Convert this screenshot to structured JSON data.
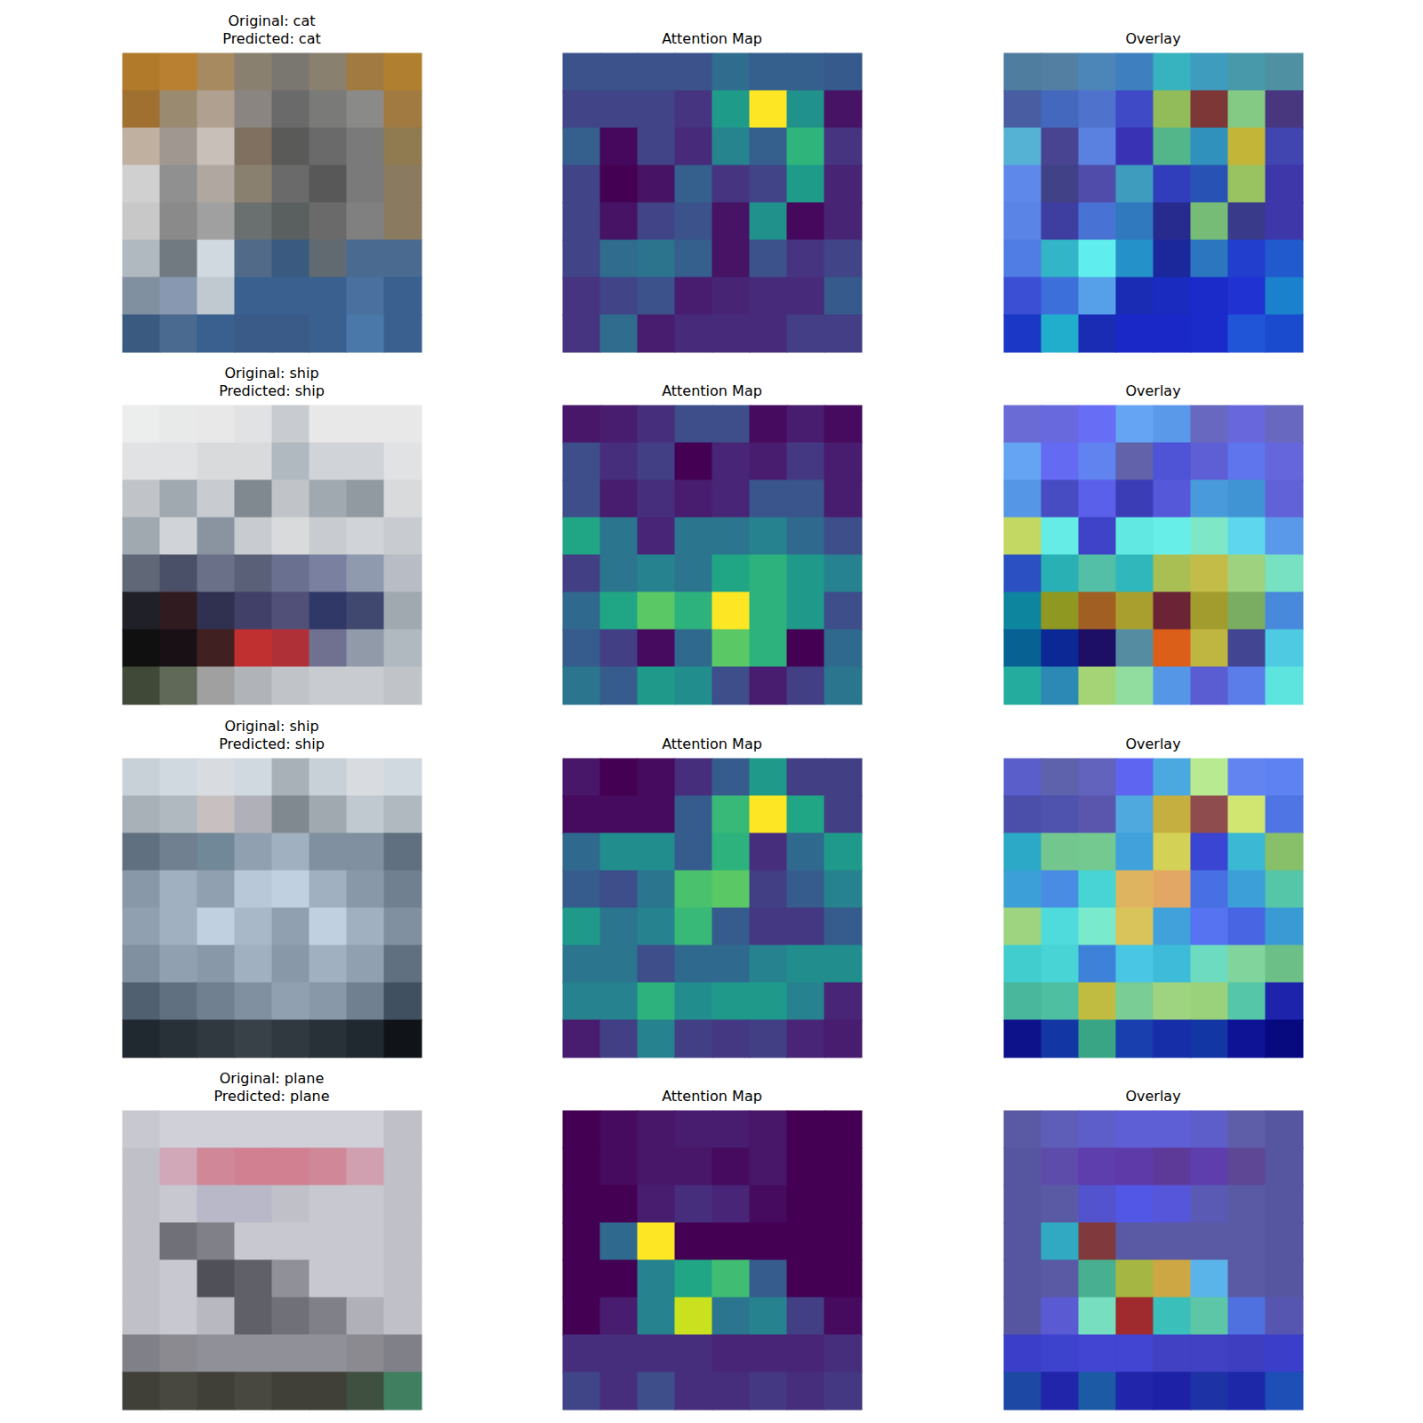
{
  "chart_data": {
    "type": "heatmap_grid",
    "tick_labels": false,
    "rows": [
      {
        "title": [
          "Original: cat",
          "Predicted: cat"
        ],
        "image": [
          [
            "#b07a2a",
            "#b88030",
            "#a88a60",
            "#8a8070",
            "#7a7670",
            "#8a8070",
            "#a07a40",
            "#b08030"
          ],
          [
            "#a07030",
            "#9a8a70",
            "#b0a090",
            "#8a8580",
            "#6a6a6a",
            "#7a7a78",
            "#8a8a88",
            "#a07a40"
          ],
          [
            "#c0b0a0",
            "#a09890",
            "#c8c0b8",
            "#807060",
            "#5a5a58",
            "#6a6a6a",
            "#7a7a7a",
            "#907a50"
          ],
          [
            "#d0d0d0",
            "#909090",
            "#b0a8a0",
            "#8a8070",
            "#6a6a6a",
            "#585858",
            "#7a7a7a",
            "#8a7a60"
          ],
          [
            "#c8c8c8",
            "#8a8a8a",
            "#a0a0a0",
            "#6a7070",
            "#5a6060",
            "#6a6a6a",
            "#808080",
            "#8a7a60"
          ],
          [
            "#b0b8c0",
            "#707a80",
            "#d0d8e0",
            "#506a88",
            "#3a5a80",
            "#606a70",
            "#4a6a90",
            "#4a6a90"
          ],
          [
            "#8090a0",
            "#8898b0",
            "#c0c8d0",
            "#3a6090",
            "#3a6090",
            "#3a6090",
            "#4a70a0",
            "#3a6090"
          ],
          [
            "#3a5a80",
            "#4a6a90",
            "#3a6090",
            "#3a5a88",
            "#3a5a88",
            "#3a6090",
            "#4a78a8",
            "#3a6090"
          ]
        ],
        "attention_title": "Attention Map",
        "attention": [
          [
            0.25,
            0.25,
            0.25,
            0.25,
            0.35,
            0.3,
            0.3,
            0.28
          ],
          [
            0.2,
            0.2,
            0.2,
            0.15,
            0.55,
            1.0,
            0.5,
            0.05
          ],
          [
            0.3,
            0.02,
            0.2,
            0.12,
            0.45,
            0.3,
            0.65,
            0.15
          ],
          [
            0.2,
            0.0,
            0.05,
            0.3,
            0.15,
            0.2,
            0.55,
            0.1
          ],
          [
            0.2,
            0.05,
            0.2,
            0.25,
            0.05,
            0.5,
            0.02,
            0.1
          ],
          [
            0.2,
            0.35,
            0.38,
            0.3,
            0.05,
            0.25,
            0.15,
            0.2
          ],
          [
            0.15,
            0.2,
            0.25,
            0.08,
            0.1,
            0.12,
            0.12,
            0.28
          ],
          [
            0.15,
            0.35,
            0.08,
            0.12,
            0.12,
            0.12,
            0.18,
            0.18
          ]
        ],
        "overlay_title": "Overlay"
      },
      {
        "title": [
          "Original: ship",
          "Predicted: ship"
        ],
        "image": [
          [
            "#eceeee",
            "#e8eaea",
            "#e8e8e8",
            "#e0e2e4",
            "#c8ccd0",
            "#e8e8e8",
            "#e8e8e8",
            "#e8e8e8"
          ],
          [
            "#e0e2e4",
            "#e0e2e4",
            "#d8dadc",
            "#d8dadc",
            "#b0b8c0",
            "#d0d4d8",
            "#d0d4d8",
            "#e0e2e4"
          ],
          [
            "#c0c4c8",
            "#a0a8b0",
            "#c8ccd0",
            "#808890",
            "#c0c4c8",
            "#a0a8b0",
            "#909aa0",
            "#d8dadc"
          ],
          [
            "#a0a8b0",
            "#d0d4d8",
            "#8a94a0",
            "#c8ccd0",
            "#d8dadc",
            "#c8ccd0",
            "#d0d4d8",
            "#c8ccd0"
          ],
          [
            "#606878",
            "#4a5068",
            "#6a7088",
            "#5a6078",
            "#6a7090",
            "#7a80a0",
            "#909aaf",
            "#b8bcc4"
          ],
          [
            "#202028",
            "#301c20",
            "#303050",
            "#404068",
            "#505078",
            "#303868",
            "#404870",
            "#a0a8b0"
          ],
          [
            "#101010",
            "#181014",
            "#402020",
            "#c03030",
            "#b03038",
            "#707090",
            "#909aa8",
            "#b0b8c0"
          ],
          [
            "#404838",
            "#606858",
            "#a0a0a0",
            "#b0b4b8",
            "#c0c4c8",
            "#c8ccd0",
            "#c8ccd0",
            "#c0c4c8"
          ]
        ],
        "attention_title": "Attention Map",
        "attention": [
          [
            0.08,
            0.1,
            0.15,
            0.25,
            0.25,
            0.05,
            0.1,
            0.05
          ],
          [
            0.25,
            0.15,
            0.2,
            0.02,
            0.12,
            0.1,
            0.18,
            0.1
          ],
          [
            0.25,
            0.1,
            0.15,
            0.1,
            0.12,
            0.28,
            0.28,
            0.1
          ],
          [
            0.6,
            0.4,
            0.12,
            0.4,
            0.4,
            0.45,
            0.35,
            0.25
          ],
          [
            0.2,
            0.4,
            0.45,
            0.4,
            0.6,
            0.65,
            0.55,
            0.45
          ],
          [
            0.35,
            0.6,
            0.75,
            0.65,
            1.0,
            0.65,
            0.55,
            0.25
          ],
          [
            0.3,
            0.2,
            0.05,
            0.35,
            0.75,
            0.65,
            0.02,
            0.35
          ],
          [
            0.4,
            0.3,
            0.55,
            0.5,
            0.25,
            0.1,
            0.2,
            0.4
          ]
        ],
        "overlay_title": "Overlay"
      },
      {
        "title": [
          "Original: ship",
          "Predicted: ship"
        ],
        "image": [
          [
            "#c8d0d8",
            "#d0d8e0",
            "#d8dce0",
            "#d0d8e0",
            "#a8b0b8",
            "#c8d0d8",
            "#d8dce0",
            "#d0d8e0"
          ],
          [
            "#a8b0b8",
            "#b0b8c0",
            "#c8c0c0",
            "#b0b0b8",
            "#808890",
            "#a0a8b0",
            "#c0c8d0",
            "#b0b8c0"
          ],
          [
            "#607080",
            "#708090",
            "#708898",
            "#90a0b0",
            "#a0b0c0",
            "#8090a0",
            "#8090a0",
            "#607080"
          ],
          [
            "#8898a8",
            "#a0b0c0",
            "#90a0b0",
            "#b8c8d8",
            "#c0d0e0",
            "#a0b0c0",
            "#8898a8",
            "#708090"
          ],
          [
            "#90a0b0",
            "#a0b0c0",
            "#c0d0e0",
            "#a8b8c8",
            "#90a0b0",
            "#c0d0e0",
            "#a0b0c0",
            "#8090a0"
          ],
          [
            "#8090a0",
            "#90a0b0",
            "#8898a8",
            "#a0b0c0",
            "#8898a8",
            "#a0b0c0",
            "#90a0b0",
            "#607080"
          ],
          [
            "#506070",
            "#607080",
            "#708090",
            "#8090a0",
            "#90a0b0",
            "#8898a8",
            "#708090",
            "#405060"
          ],
          [
            "#202830",
            "#283038",
            "#303840",
            "#384048",
            "#303840",
            "#283038",
            "#202830",
            "#101418"
          ]
        ],
        "attention_title": "Attention Map",
        "attention": [
          [
            0.08,
            0.02,
            0.05,
            0.15,
            0.3,
            0.55,
            0.2,
            0.2
          ],
          [
            0.05,
            0.05,
            0.05,
            0.3,
            0.68,
            1.0,
            0.6,
            0.2
          ],
          [
            0.35,
            0.5,
            0.5,
            0.3,
            0.65,
            0.15,
            0.35,
            0.55
          ],
          [
            0.3,
            0.25,
            0.4,
            0.72,
            0.75,
            0.2,
            0.3,
            0.45
          ],
          [
            0.55,
            0.4,
            0.45,
            0.68,
            0.3,
            0.18,
            0.18,
            0.3
          ],
          [
            0.4,
            0.4,
            0.25,
            0.35,
            0.35,
            0.45,
            0.5,
            0.5
          ],
          [
            0.45,
            0.45,
            0.65,
            0.5,
            0.55,
            0.55,
            0.45,
            0.12
          ],
          [
            0.1,
            0.2,
            0.45,
            0.2,
            0.18,
            0.2,
            0.12,
            0.1
          ]
        ],
        "overlay_title": "Overlay"
      },
      {
        "title": [
          "Original: plane",
          "Predicted: plane"
        ],
        "image": [
          [
            "#c8c8d0",
            "#d0d0d8",
            "#d0d0d8",
            "#d0d0d8",
            "#d0d0d8",
            "#d0d0d8",
            "#d0d0d8",
            "#c0c0c8"
          ],
          [
            "#c0c0c8",
            "#d0a8b8",
            "#d08898",
            "#d08090",
            "#d08090",
            "#d08898",
            "#d0a0b0",
            "#c0c0c8"
          ],
          [
            "#c0c0c8",
            "#c8c8d0",
            "#b8b8c8",
            "#b8b8c8",
            "#c0c0c8",
            "#c8c8d0",
            "#c8c8d0",
            "#c0c0c8"
          ],
          [
            "#c0c0c8",
            "#707078",
            "#808088",
            "#c8c8d0",
            "#c8c8d0",
            "#c8c8d0",
            "#c8c8d0",
            "#c0c0c8"
          ],
          [
            "#c0c0c8",
            "#c8c8d0",
            "#505058",
            "#606068",
            "#909098",
            "#c8c8d0",
            "#c8c8d0",
            "#c0c0c8"
          ],
          [
            "#c0c0c8",
            "#c8c8d0",
            "#b8b8c0",
            "#606068",
            "#707078",
            "#808088",
            "#b0b0b8",
            "#c0c0c8"
          ],
          [
            "#808088",
            "#8a8a90",
            "#909098",
            "#909098",
            "#909098",
            "#909098",
            "#8a8a90",
            "#808088"
          ],
          [
            "#404038",
            "#484840",
            "#404038",
            "#484840",
            "#404038",
            "#404038",
            "#405040",
            "#408060"
          ]
        ],
        "attention_title": "Attention Map",
        "attention": [
          [
            0.02,
            0.05,
            0.08,
            0.1,
            0.1,
            0.08,
            0.02,
            0.02
          ],
          [
            0.02,
            0.05,
            0.08,
            0.08,
            0.05,
            0.08,
            0.02,
            0.02
          ],
          [
            0.02,
            0.02,
            0.1,
            0.15,
            0.12,
            0.05,
            0.02,
            0.02
          ],
          [
            0.02,
            0.35,
            1.0,
            0.02,
            0.02,
            0.02,
            0.02,
            0.02
          ],
          [
            0.02,
            0.02,
            0.45,
            0.6,
            0.7,
            0.3,
            0.02,
            0.02
          ],
          [
            0.02,
            0.1,
            0.45,
            0.92,
            0.4,
            0.45,
            0.2,
            0.05
          ],
          [
            0.15,
            0.15,
            0.15,
            0.15,
            0.12,
            0.12,
            0.12,
            0.15
          ],
          [
            0.22,
            0.15,
            0.25,
            0.15,
            0.15,
            0.18,
            0.15,
            0.18
          ]
        ],
        "overlay_title": "Overlay"
      }
    ]
  }
}
